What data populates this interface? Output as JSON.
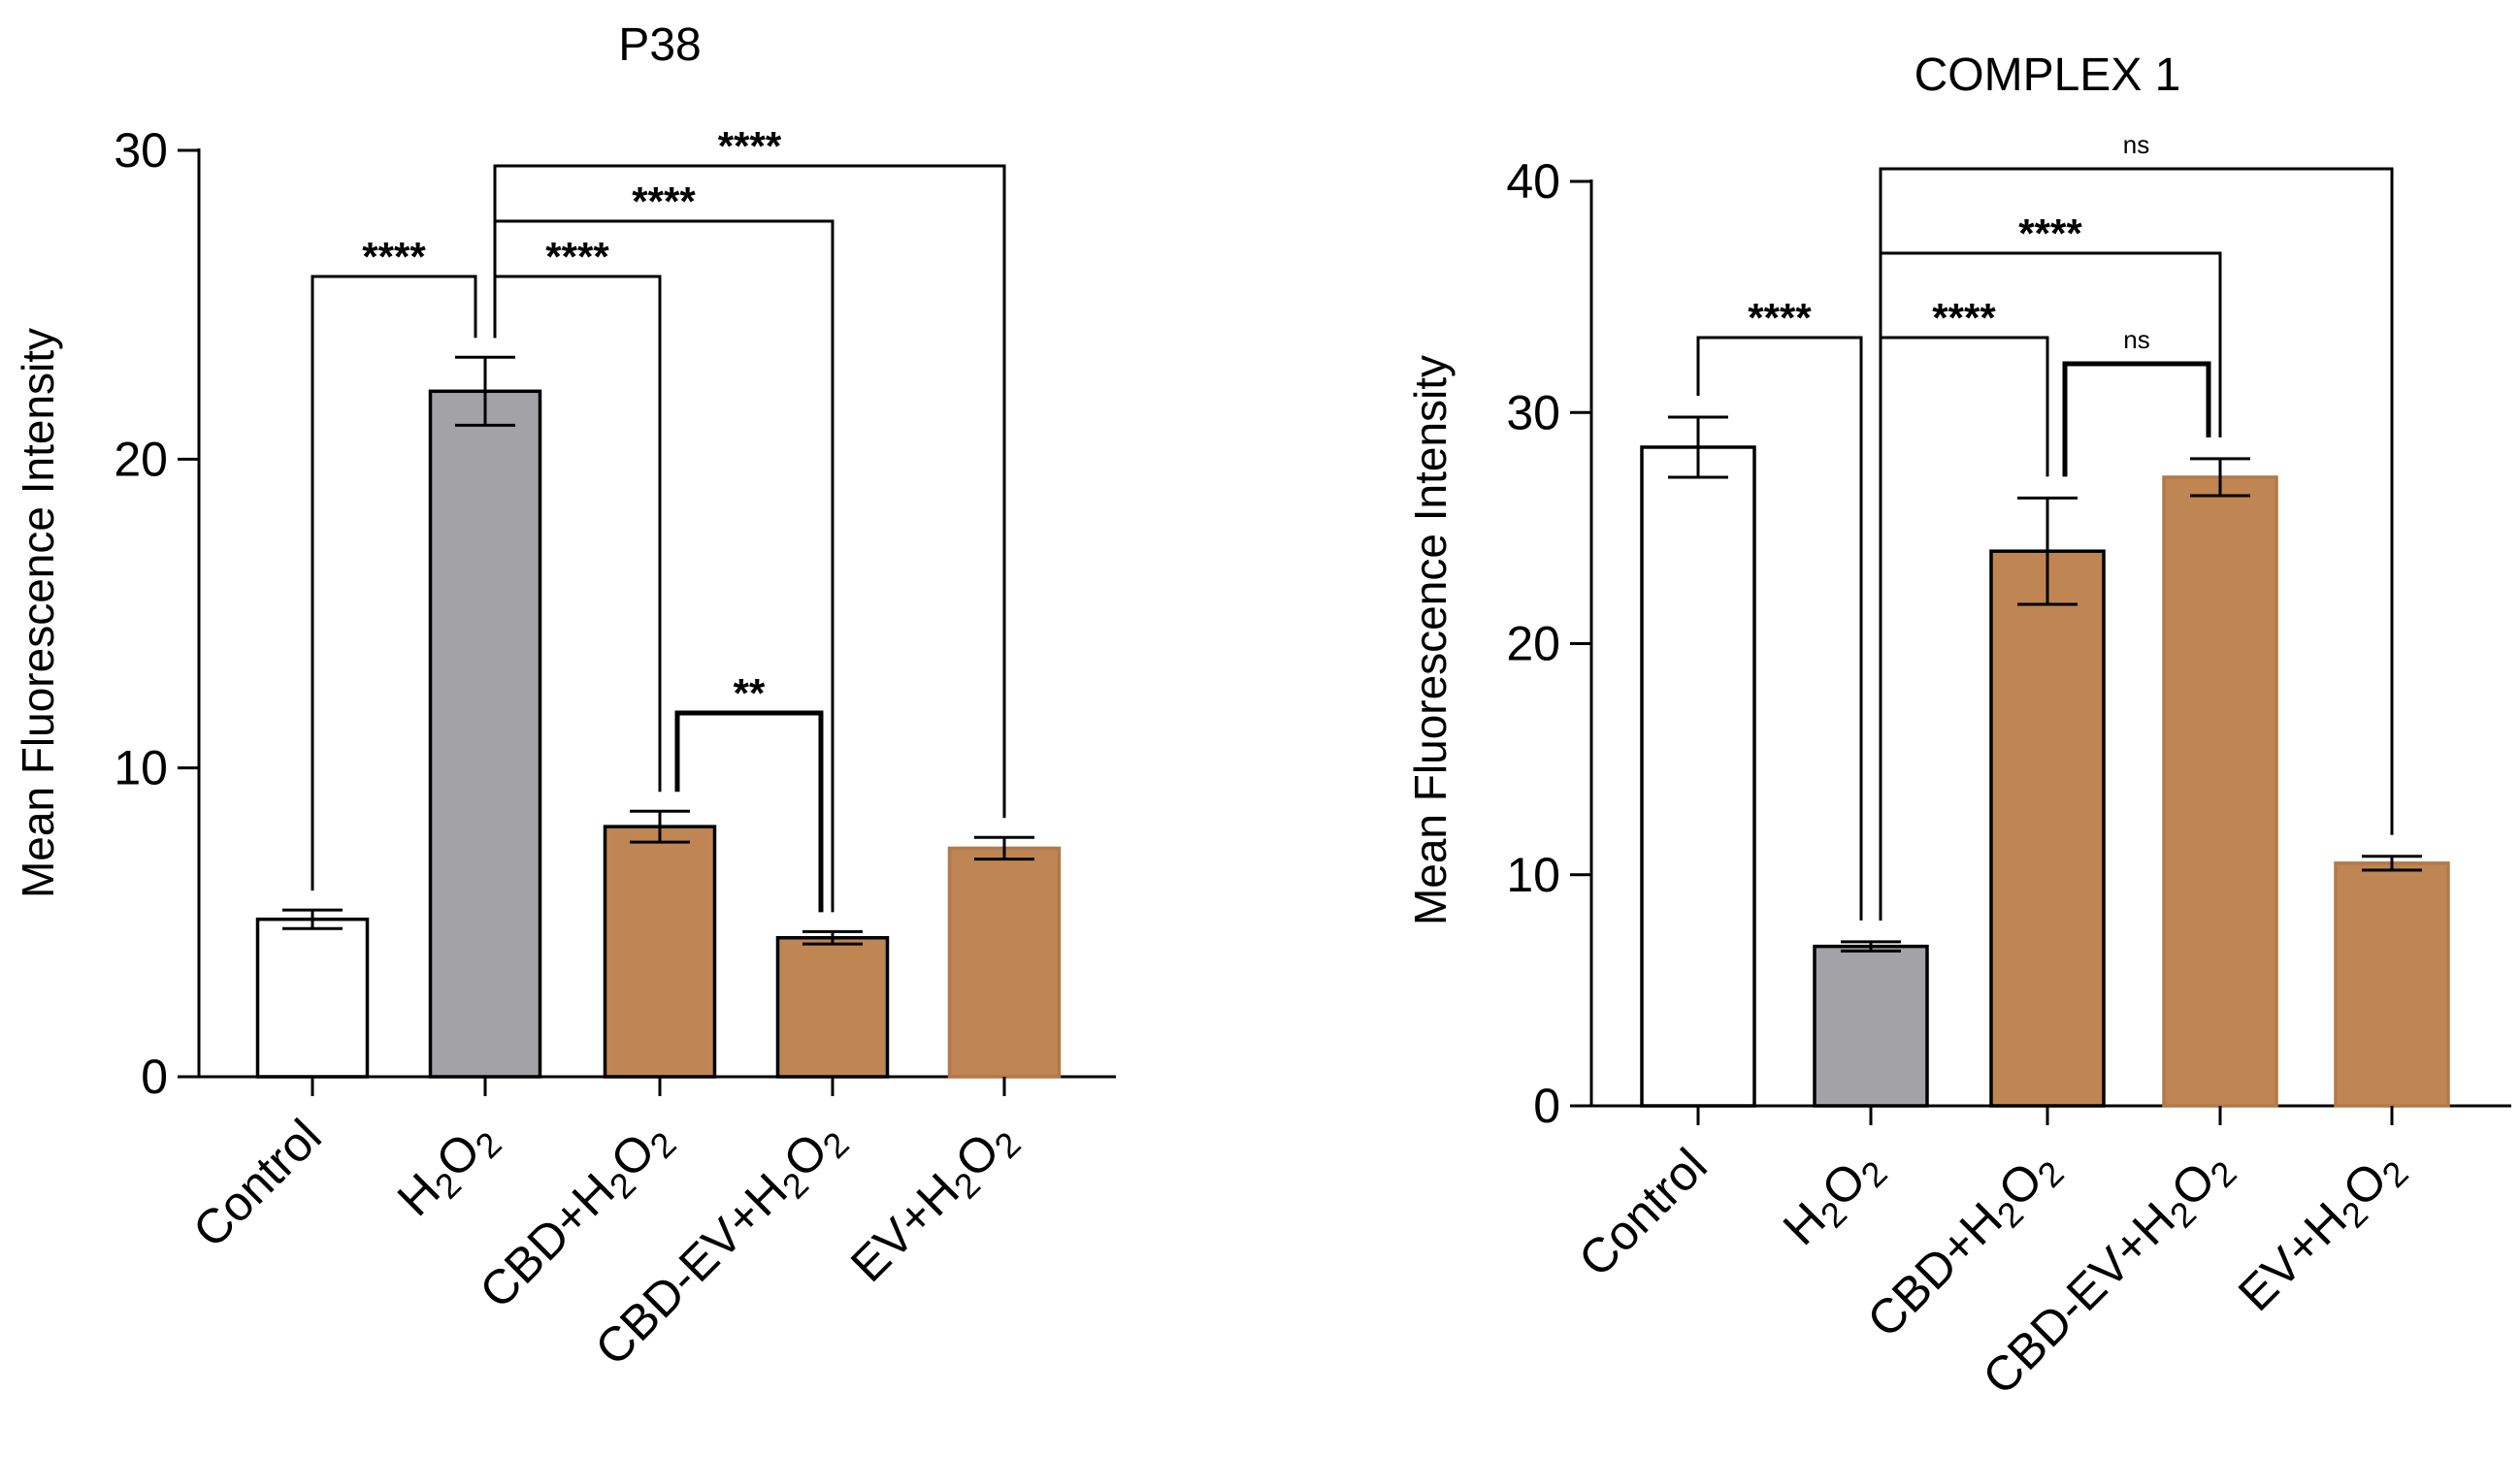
{
  "chart_data": [
    {
      "type": "bar",
      "title": "P38",
      "ylabel": "Mean Fluorescence Intensity",
      "xlabel": "",
      "ylim": [
        0,
        30
      ],
      "yticks": [
        0,
        10,
        20,
        30
      ],
      "grid": false,
      "categories": [
        {
          "label": "Control",
          "parts": [
            [
              "Control",
              false
            ]
          ]
        },
        {
          "label": "H2O2",
          "parts": [
            [
              "H",
              false
            ],
            [
              "2",
              true
            ],
            [
              "O",
              false
            ],
            [
              "2",
              true
            ]
          ]
        },
        {
          "label": "CBD+H2O2",
          "parts": [
            [
              "CBD+H",
              false
            ],
            [
              "2",
              true
            ],
            [
              "O",
              false
            ],
            [
              "2",
              true
            ]
          ]
        },
        {
          "label": "CBD-EV+H2O2",
          "parts": [
            [
              "CBD-EV+H",
              false
            ],
            [
              "2",
              true
            ],
            [
              "O",
              false
            ],
            [
              "2",
              true
            ]
          ]
        },
        {
          "label": "EV+H2O2",
          "parts": [
            [
              "EV+H",
              false
            ],
            [
              "2",
              true
            ],
            [
              "O",
              false
            ],
            [
              "2",
              true
            ]
          ]
        }
      ],
      "values": [
        5.1,
        22.2,
        8.1,
        4.5,
        7.4
      ],
      "errors": [
        0.3,
        1.1,
        0.5,
        0.2,
        0.35
      ],
      "colors": [
        "#ffffff",
        "#a3a2a7",
        "#bf8553",
        "#bf8553",
        "#bf8553"
      ],
      "edge_colors": [
        "#000000",
        "#000000",
        "#000000",
        "#000000",
        "#b27a4a"
      ],
      "significance": [
        {
          "from": 0,
          "to": 1,
          "label": "****",
          "level": 0
        },
        {
          "from": 1,
          "to": 2,
          "label": "****",
          "level": 0
        },
        {
          "from": 1,
          "to": 3,
          "label": "****",
          "level": 1
        },
        {
          "from": 1,
          "to": 4,
          "label": "****",
          "level": 2
        },
        {
          "from": 2,
          "to": 3,
          "label": "**",
          "level": -1
        }
      ]
    },
    {
      "type": "bar",
      "title": "COMPLEX 1",
      "ylabel": "Mean Fluorescence Intensity",
      "xlabel": "",
      "ylim": [
        0,
        40
      ],
      "yticks": [
        0,
        10,
        20,
        30,
        40
      ],
      "grid": false,
      "categories": [
        {
          "label": "Control",
          "parts": [
            [
              "Control",
              false
            ]
          ]
        },
        {
          "label": "H2O2",
          "parts": [
            [
              "H",
              false
            ],
            [
              "2",
              true
            ],
            [
              "O",
              false
            ],
            [
              "2",
              true
            ]
          ]
        },
        {
          "label": "CBD+H2O2",
          "parts": [
            [
              "CBD+H",
              false
            ],
            [
              "2",
              true
            ],
            [
              "O",
              false
            ],
            [
              "2",
              true
            ]
          ]
        },
        {
          "label": "CBD-EV+H2O2",
          "parts": [
            [
              "CBD-EV+H",
              false
            ],
            [
              "2",
              true
            ],
            [
              "O",
              false
            ],
            [
              "2",
              true
            ]
          ]
        },
        {
          "label": "EV+H2O2",
          "parts": [
            [
              "EV+H",
              false
            ],
            [
              "2",
              true
            ],
            [
              "O",
              false
            ],
            [
              "2",
              true
            ]
          ]
        }
      ],
      "values": [
        28.5,
        6.9,
        24.0,
        27.2,
        10.5
      ],
      "errors": [
        1.3,
        0.2,
        2.3,
        0.8,
        0.3
      ],
      "colors": [
        "#ffffff",
        "#a3a2a7",
        "#bf8553",
        "#bf8553",
        "#bf8553"
      ],
      "edge_colors": [
        "#000000",
        "#000000",
        "#000000",
        "#b27a4a",
        "#b27a4a"
      ],
      "significance": [
        {
          "from": 0,
          "to": 1,
          "label": "****",
          "level": 0
        },
        {
          "from": 1,
          "to": 2,
          "label": "****",
          "level": 0
        },
        {
          "from": 1,
          "to": 3,
          "label": "****",
          "level": 1
        },
        {
          "from": 1,
          "to": 4,
          "label": "ns",
          "level": 2
        },
        {
          "from": 2,
          "to": 3,
          "label": "ns",
          "level": -1
        }
      ]
    }
  ]
}
